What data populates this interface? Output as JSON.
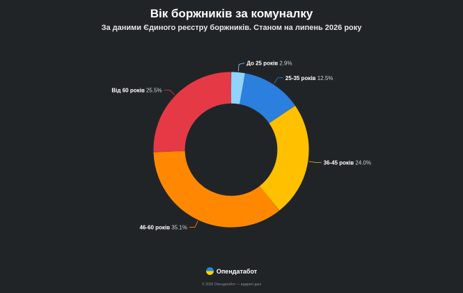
{
  "header": {
    "title": "Вік боржників за комуналку",
    "subtitle": "За даними Єдиного реєстру боржників. Станом на липень 2026 року"
  },
  "chart_data": {
    "type": "pie",
    "donut": true,
    "unit": "%",
    "slices": [
      {
        "label": "До 25 років",
        "value": 2.9,
        "color": "#8fd3fe"
      },
      {
        "label": "25-35 років",
        "value": 12.5,
        "color": "#2b7fde"
      },
      {
        "label": "36-45 років",
        "value": 24.0,
        "color": "#ffc000"
      },
      {
        "label": "46-60 років",
        "value": 35.1,
        "color": "#ff8800"
      },
      {
        "label": "Від 60 років",
        "value": 25.5,
        "color": "#e63946"
      }
    ],
    "label_color": "#ffffff",
    "value_color": "#d0d3d6"
  },
  "brand": {
    "name": "Опендатабот",
    "logo_icon": "ukraine-flag-circle-icon",
    "logo_colors": [
      "#1e88e5",
      "#ffd600"
    ]
  },
  "footer": {
    "text": "© 2026 Опендатабот — відкриті дані"
  }
}
